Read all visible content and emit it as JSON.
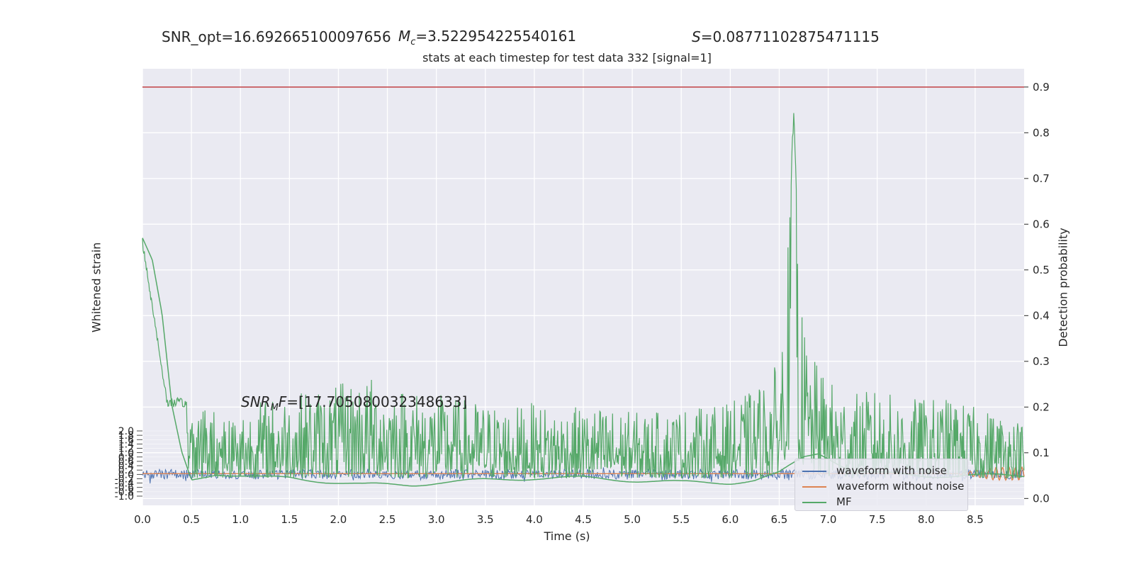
{
  "header": {
    "snr_opt": "SNR_opt=16.692665100097656",
    "mc_symbol": "M",
    "mc_sub": "c",
    "mc_value": "=3.522954225540161",
    "s_symbol": "S",
    "s_value": "=0.08771102875471115"
  },
  "annotation": {
    "prefix": "SNR",
    "sub": "M",
    "mid": "F",
    "value": "=[17.705080032348633]"
  },
  "chart_data": {
    "type": "line",
    "title": "stats at each timestep for test data 332 [signal=1]",
    "xlabel": "Time (s)",
    "ylabel_left": "Whitened strain",
    "ylabel_right": "Detection probability",
    "xlim": [
      0.0,
      9.0
    ],
    "ylim_right": [
      -0.015,
      0.94
    ],
    "x_ticks": [
      "0.0",
      "0.5",
      "1.0",
      "1.5",
      "2.0",
      "2.5",
      "3.0",
      "3.5",
      "4.0",
      "4.5",
      "5.0",
      "5.5",
      "6.0",
      "6.5",
      "7.0",
      "7.5",
      "8.0",
      "8.5"
    ],
    "y_right_ticks": [
      "0.0",
      "0.1",
      "0.2",
      "0.3",
      "0.4",
      "0.5",
      "0.6",
      "0.7",
      "0.8",
      "0.9"
    ],
    "y_left_ticks": [
      "2.0",
      "1.8",
      "1.6",
      "1.4",
      "1.2",
      "1.0",
      "0.8",
      "0.6",
      "0.4",
      "0.2",
      "0.0",
      "-0.2",
      "-0.4",
      "-0.6",
      "-0.8",
      "-1.0"
    ],
    "threshold": 0.9,
    "grid": true,
    "legend_position": "lower-right",
    "series": [
      {
        "name": "waveform with noise",
        "color": "#4c72b0"
      },
      {
        "name": "waveform without noise",
        "color": "#dd8452"
      },
      {
        "name": "MF",
        "color": "#55a868"
      }
    ],
    "detection_probability_envelope": {
      "x": [
        0.0,
        0.25,
        0.5,
        0.75,
        1.0,
        1.25,
        1.5,
        1.75,
        2.0,
        2.25,
        2.5,
        2.75,
        3.0,
        3.25,
        3.5,
        3.75,
        4.0,
        4.25,
        4.5,
        4.75,
        5.0,
        5.25,
        5.5,
        5.75,
        6.0,
        6.25,
        6.5,
        6.6,
        6.65,
        6.7,
        6.8,
        7.0,
        7.25,
        7.5,
        7.75,
        8.0,
        8.25,
        8.5,
        8.75,
        9.0
      ],
      "y": [
        0.57,
        0.22,
        0.22,
        0.2,
        0.2,
        0.22,
        0.23,
        0.24,
        0.25,
        0.27,
        0.26,
        0.24,
        0.23,
        0.22,
        0.21,
        0.2,
        0.21,
        0.2,
        0.2,
        0.2,
        0.19,
        0.19,
        0.2,
        0.2,
        0.21,
        0.24,
        0.3,
        0.6,
        0.9,
        0.45,
        0.32,
        0.26,
        0.23,
        0.24,
        0.22,
        0.22,
        0.22,
        0.2,
        0.19,
        0.17
      ]
    },
    "matched_filter_shape": {
      "x": [
        0.0,
        0.1,
        0.2,
        0.3,
        0.4,
        0.5,
        0.75,
        1.0,
        1.25,
        1.5,
        2.0,
        2.25,
        2.5,
        2.75,
        3.0,
        3.5,
        4.0,
        4.5,
        5.0,
        5.5,
        6.0,
        6.25,
        6.5,
        6.75,
        6.9,
        7.0,
        7.25,
        7.5,
        8.0,
        8.5,
        9.0
      ],
      "y": [
        0.57,
        0.52,
        0.4,
        0.2,
        0.1,
        0.04,
        0.055,
        0.05,
        0.045,
        0.045,
        0.035,
        0.03,
        0.03,
        0.03,
        0.035,
        0.04,
        0.045,
        0.045,
        0.04,
        0.035,
        0.035,
        0.04,
        0.055,
        0.09,
        0.1,
        0.09,
        0.06,
        0.055,
        0.05,
        0.05,
        0.05
      ]
    }
  }
}
